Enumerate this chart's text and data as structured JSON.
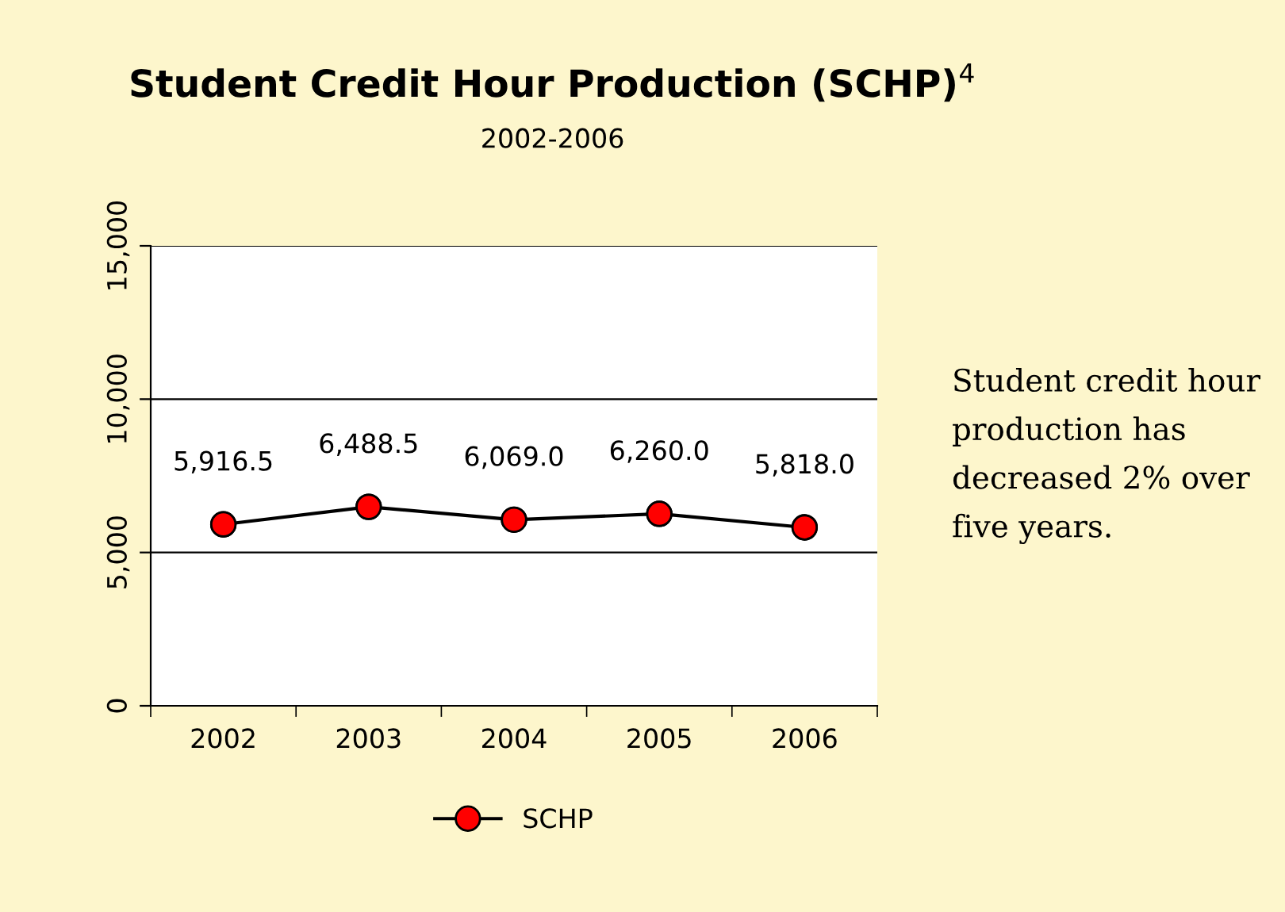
{
  "chart_data": {
    "type": "line",
    "title": "Student Credit Hour Production (SCHP)$^{4}$",
    "subtitle": "2002-2006",
    "categories": [
      "2002",
      "2003",
      "2004",
      "2005",
      "2006"
    ],
    "series": [
      {
        "name": "SCHP",
        "color": "#000000",
        "colors": [
          "#ff0000",
          "#ff0000",
          "#ff0000",
          "#ff0000",
          "#ff0000"
        ],
        "values": [
          5916.5,
          6488.5,
          6069.0,
          6260.0,
          5818.0
        ],
        "value_labels": [
          "5,916.5",
          "6,488.5",
          "6,069.0",
          "6,260.0",
          "5,818.0"
        ]
      }
    ],
    "ylim": [
      0,
      15000
    ],
    "yticks": [
      {
        "value": 0,
        "label": "0"
      },
      {
        "value": 5000,
        "label": "5,000"
      },
      {
        "value": 10000,
        "label": "10,000"
      },
      {
        "value": 15000,
        "label": "15,000"
      }
    ],
    "grid": "y",
    "legend": "bottom",
    "marker": "circle",
    "line_style": "solid",
    "annotations": [
      "Student credit hour production has decreased 2% over five years."
    ]
  }
}
